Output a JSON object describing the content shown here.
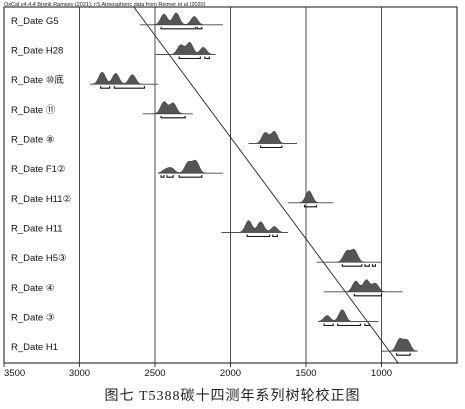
{
  "header": "OxCal v4.4.4 Bronk Ramsey (2021); r:5 Atmospheric data from Reimer et al (2020)",
  "caption": "图七  T5388碳十四测年系列树轮校正图",
  "chart_data": {
    "type": "line",
    "title": "",
    "xlabel": "",
    "ylabel": "",
    "xlim": [
      3500,
      500
    ],
    "x_ticks": [
      3500,
      3000,
      2500,
      2000,
      1500,
      1000
    ],
    "x_tick_labels": [
      "3500",
      "3000",
      "2500",
      "2000",
      "1500",
      "1000"
    ],
    "grid": "vertical lines at each tick",
    "samples": [
      {
        "label": "R_Date G5",
        "range": [
          2600,
          2050
        ],
        "peaks": [
          [
            2440,
            0.9
          ],
          [
            2360,
            1.0
          ],
          [
            2240,
            0.7
          ]
        ],
        "hpd": [
          [
            2460,
            2230
          ],
          [
            2220,
            2190
          ]
        ]
      },
      {
        "label": "R_Date H28",
        "range": [
          2500,
          2100
        ],
        "peaks": [
          [
            2330,
            0.8
          ],
          [
            2270,
            1.0
          ],
          [
            2180,
            0.6
          ]
        ],
        "hpd": [
          [
            2340,
            2200
          ],
          [
            2170,
            2140
          ]
        ]
      },
      {
        "label": "R_Date ⑩底",
        "range": [
          2930,
          2480
        ],
        "peaks": [
          [
            2850,
            1.0
          ],
          [
            2760,
            0.9
          ],
          [
            2650,
            0.8
          ]
        ],
        "hpd": [
          [
            2860,
            2800
          ],
          [
            2770,
            2570
          ]
        ]
      },
      {
        "label": "R_Date ⑪",
        "range": [
          2580,
          2250
        ],
        "peaks": [
          [
            2440,
            1.0
          ],
          [
            2380,
            0.9
          ]
        ],
        "hpd": [
          [
            2460,
            2300
          ]
        ]
      },
      {
        "label": "R_Date ⑧",
        "range": [
          1880,
          1560
        ],
        "peaks": [
          [
            1770,
            0.9
          ],
          [
            1710,
            1.0
          ]
        ],
        "hpd": [
          [
            1800,
            1660
          ]
        ]
      },
      {
        "label": "R_Date F1②",
        "range": [
          2480,
          2050
        ],
        "peaks": [
          [
            2430,
            0.3
          ],
          [
            2390,
            0.4
          ],
          [
            2280,
            0.9
          ],
          [
            2230,
            1.0
          ]
        ],
        "hpd": [
          [
            2460,
            2440
          ],
          [
            2420,
            2380
          ],
          [
            2340,
            2190
          ]
        ]
      },
      {
        "label": "R_Date H11②",
        "range": [
          1620,
          1320
        ],
        "peaks": [
          [
            1480,
            1.0
          ]
        ],
        "hpd": [
          [
            1510,
            1430
          ]
        ]
      },
      {
        "label": "R_Date H11",
        "range": [
          2060,
          1620
        ],
        "peaks": [
          [
            1880,
            1.0
          ],
          [
            1800,
            0.9
          ],
          [
            1710,
            0.5
          ]
        ],
        "hpd": [
          [
            1890,
            1740
          ],
          [
            1720,
            1690
          ]
        ]
      },
      {
        "label": "R_Date H5③",
        "range": [
          1430,
          1000
        ],
        "peaks": [
          [
            1230,
            0.9
          ],
          [
            1180,
            1.0
          ]
        ],
        "hpd": [
          [
            1260,
            1130
          ],
          [
            1110,
            1080
          ],
          [
            1060,
            1040
          ]
        ]
      },
      {
        "label": "R_Date ④",
        "range": [
          1380,
          860
        ],
        "peaks": [
          [
            1170,
            0.9
          ],
          [
            1100,
            1.0
          ],
          [
            1040,
            0.7
          ]
        ],
        "hpd": [
          [
            1180,
            1000
          ]
        ]
      },
      {
        "label": "R_Date ③",
        "range": [
          1420,
          1020
        ],
        "peaks": [
          [
            1360,
            0.5
          ],
          [
            1260,
            1.0
          ]
        ],
        "hpd": [
          [
            1380,
            1320
          ],
          [
            1290,
            1140
          ],
          [
            1110,
            1080
          ]
        ]
      },
      {
        "label": "R_Date H1",
        "range": [
          1000,
          760
        ],
        "peaks": [
          [
            880,
            1.0
          ],
          [
            830,
            0.9
          ]
        ],
        "hpd": [
          [
            900,
            810
          ]
        ]
      }
    ],
    "diagonal_line": {
      "from": [
        2640,
        "top"
      ],
      "to": [
        890,
        "bottom"
      ]
    }
  }
}
